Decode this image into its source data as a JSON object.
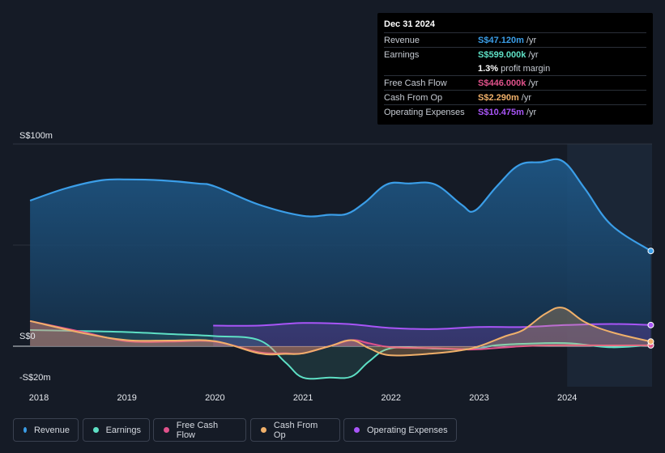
{
  "tooltip": {
    "date": "Dec 31 2024",
    "rows": [
      {
        "label": "Revenue",
        "value": "S$47.120m",
        "unit": "/yr",
        "color": "#3b9ee8"
      },
      {
        "label": "Earnings",
        "value": "S$599.000k",
        "unit": "/yr",
        "color": "#5ee0c5"
      },
      {
        "label": "",
        "value": "1.3%",
        "unit": "profit margin",
        "color": "#ffffff"
      },
      {
        "label": "Free Cash Flow",
        "value": "S$446.000k",
        "unit": "/yr",
        "color": "#e0528b"
      },
      {
        "label": "Cash From Op",
        "value": "S$2.290m",
        "unit": "/yr",
        "color": "#f0b06a"
      },
      {
        "label": "Operating Expenses",
        "value": "S$10.475m",
        "unit": "/yr",
        "color": "#a855f7"
      }
    ]
  },
  "legend": [
    {
      "label": "Revenue",
      "color": "#3b9ee8"
    },
    {
      "label": "Earnings",
      "color": "#5ee0c5"
    },
    {
      "label": "Free Cash Flow",
      "color": "#e0528b"
    },
    {
      "label": "Cash From Op",
      "color": "#f0b06a"
    },
    {
      "label": "Operating Expenses",
      "color": "#a855f7"
    }
  ],
  "chart_data": {
    "type": "area",
    "title": "",
    "xlabel": "",
    "ylabel": "",
    "ylim": [
      -20,
      100
    ],
    "xlim": [
      2017.9,
      2024.95
    ],
    "y_ticks": [
      {
        "value": 100,
        "label": "S$100m"
      },
      {
        "value": 0,
        "label": "S$0"
      },
      {
        "value": -20,
        "label": "-S$20m"
      }
    ],
    "x_ticks": [
      2018,
      2019,
      2020,
      2021,
      2022,
      2023,
      2024
    ],
    "highlight_from": 2024.0,
    "series": [
      {
        "name": "Revenue",
        "color": "#3b9ee8",
        "x": [
          2017.9,
          2018.3,
          2018.7,
          2019.0,
          2019.4,
          2019.8,
          2020.0,
          2020.5,
          2021.0,
          2021.3,
          2021.5,
          2021.7,
          2021.95,
          2022.2,
          2022.5,
          2022.8,
          2022.95,
          2023.2,
          2023.45,
          2023.7,
          2023.95,
          2024.2,
          2024.5,
          2024.95
        ],
        "values": [
          72,
          78,
          82,
          82.5,
          82,
          80.5,
          79,
          70,
          64.5,
          65,
          65.5,
          71,
          80,
          80.5,
          80,
          70,
          67,
          79,
          89.5,
          91,
          91.5,
          78,
          60,
          47.12
        ]
      },
      {
        "name": "Earnings",
        "color": "#5ee0c5",
        "x": [
          2017.9,
          2018.5,
          2019.0,
          2019.5,
          2020.0,
          2020.5,
          2020.8,
          2021.0,
          2021.3,
          2021.55,
          2021.75,
          2022.0,
          2022.5,
          2022.8,
          2023.0,
          2023.2,
          2023.5,
          2024.0,
          2024.5,
          2024.95
        ],
        "values": [
          8,
          7.5,
          7,
          6,
          5,
          3,
          -8,
          -15.5,
          -15.5,
          -15,
          -7.5,
          -1,
          -1.2,
          -1.5,
          -1,
          0.5,
          1.2,
          1.5,
          -0.5,
          0.6
        ]
      },
      {
        "name": "Free Cash Flow",
        "color": "#e0528b",
        "x": [
          2017.9,
          2018.5,
          2019.0,
          2019.5,
          2020.0,
          2020.5,
          2020.8,
          2021.0,
          2021.3,
          2021.55,
          2021.75,
          2022.0,
          2022.5,
          2022.8,
          2023.0,
          2023.5,
          2024.0,
          2024.5,
          2024.95
        ],
        "values": [
          12.5,
          7,
          2.5,
          2.3,
          2.3,
          -3,
          -3.5,
          -3.5,
          0,
          3,
          1.5,
          -0.5,
          -1,
          -1.5,
          -1.5,
          0,
          0.5,
          0.4,
          0.446
        ]
      },
      {
        "name": "Cash From Op",
        "color": "#f0b06a",
        "x": [
          2017.9,
          2018.5,
          2019.0,
          2019.5,
          2020.0,
          2020.5,
          2020.8,
          2021.0,
          2021.3,
          2021.55,
          2021.75,
          2022.0,
          2022.5,
          2022.8,
          2023.0,
          2023.3,
          2023.5,
          2023.75,
          2023.95,
          2024.2,
          2024.5,
          2024.95
        ],
        "values": [
          12.5,
          6.5,
          3,
          2.8,
          2.5,
          -3.5,
          -3.8,
          -3.5,
          0,
          3,
          -1,
          -4.5,
          -3.5,
          -2,
          0,
          5,
          8,
          16,
          19,
          12,
          7,
          2.29
        ]
      },
      {
        "name": "Operating Expenses",
        "color": "#a855f7",
        "x": [
          2019.98,
          2020.5,
          2021.0,
          2021.5,
          2022.0,
          2022.5,
          2023.0,
          2023.5,
          2024.0,
          2024.5,
          2024.95
        ],
        "values": [
          10.2,
          10.2,
          11.5,
          11,
          9,
          8.5,
          9.5,
          9.5,
          10.5,
          11,
          10.475
        ]
      }
    ]
  }
}
